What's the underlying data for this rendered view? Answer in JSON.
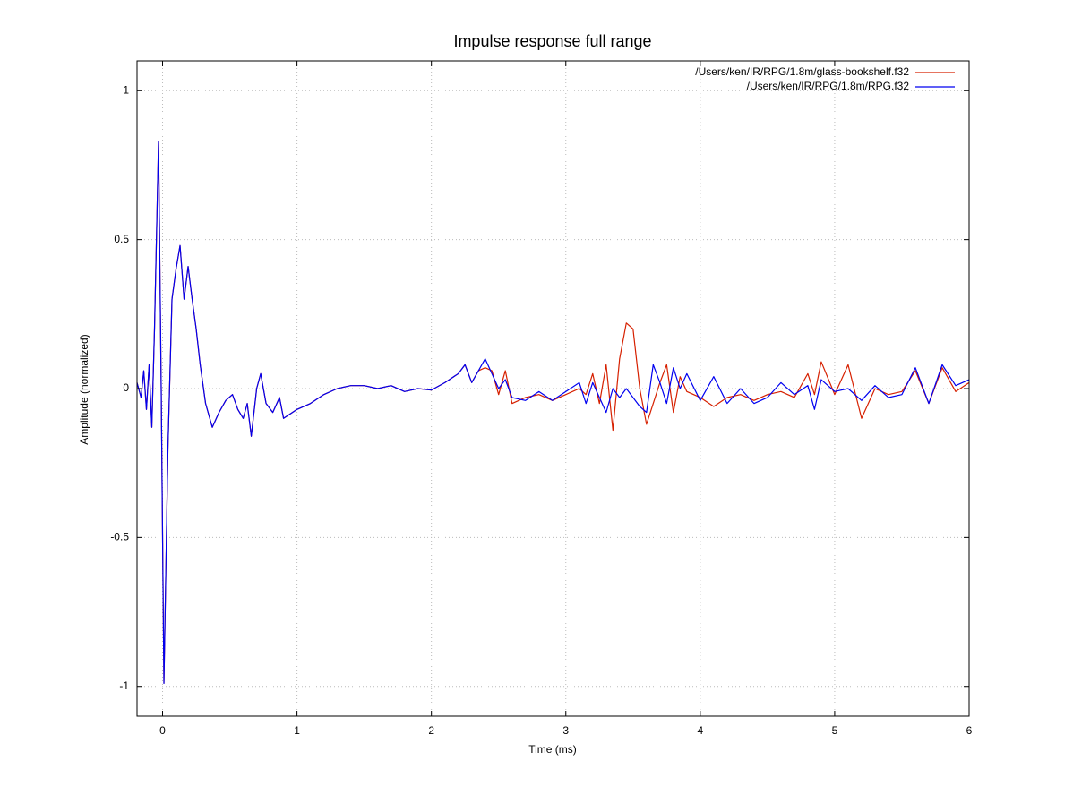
{
  "chart_data": {
    "type": "line",
    "title": "Impulse response full range",
    "x_label": "Time (ms)",
    "y_label": "Amplitude (normalized)",
    "x": [
      -0.19,
      -0.16,
      -0.14,
      -0.12,
      -0.1,
      -0.08,
      -0.06,
      -0.03,
      -0.01,
      0.01,
      0.04,
      0.07,
      0.1,
      0.13,
      0.16,
      0.19,
      0.22,
      0.25,
      0.28,
      0.32,
      0.37,
      0.42,
      0.47,
      0.52,
      0.56,
      0.6,
      0.63,
      0.66,
      0.7,
      0.73,
      0.77,
      0.82,
      0.87,
      0.9,
      1.0,
      1.1,
      1.2,
      1.3,
      1.4,
      1.5,
      1.6,
      1.7,
      1.8,
      1.9,
      2.0,
      2.1,
      2.2,
      2.25,
      2.3,
      2.35,
      2.4,
      2.45,
      2.5,
      2.55,
      2.6,
      2.7,
      2.8,
      2.9,
      3.0,
      3.1,
      3.15,
      3.2,
      3.25,
      3.3,
      3.35,
      3.4,
      3.45,
      3.5,
      3.55,
      3.6,
      3.65,
      3.7,
      3.75,
      3.8,
      3.85,
      3.9,
      4.0,
      4.1,
      4.2,
      4.3,
      4.4,
      4.5,
      4.6,
      4.7,
      4.8,
      4.85,
      4.9,
      5.0,
      5.1,
      5.2,
      5.3,
      5.4,
      5.5,
      5.6,
      5.7,
      5.8,
      5.9,
      6.0
    ],
    "series": [
      {
        "name": "/Users/ken/IR/RPG/1.8m/glass-bookshelf.f32",
        "color": "#d62000",
        "values": [
          0.02,
          -0.03,
          0.06,
          -0.07,
          0.08,
          -0.13,
          0.2,
          0.83,
          0.0,
          -0.99,
          -0.2,
          0.3,
          0.4,
          0.48,
          0.3,
          0.41,
          0.3,
          0.2,
          0.08,
          -0.05,
          -0.13,
          -0.08,
          -0.04,
          -0.02,
          -0.07,
          -0.1,
          -0.05,
          -0.16,
          0.0,
          0.05,
          -0.05,
          -0.08,
          -0.03,
          -0.1,
          -0.07,
          -0.05,
          -0.02,
          0.0,
          0.01,
          0.01,
          0.0,
          0.01,
          -0.01,
          0.0,
          -0.005,
          0.02,
          0.05,
          0.08,
          0.02,
          0.06,
          0.07,
          0.06,
          -0.02,
          0.06,
          -0.05,
          -0.03,
          -0.02,
          -0.04,
          -0.02,
          0.0,
          -0.02,
          0.05,
          -0.05,
          0.08,
          -0.14,
          0.1,
          0.22,
          0.2,
          0.0,
          -0.12,
          -0.05,
          0.02,
          0.08,
          -0.08,
          0.04,
          -0.01,
          -0.03,
          -0.06,
          -0.03,
          -0.02,
          -0.04,
          -0.02,
          -0.01,
          -0.03,
          0.05,
          -0.02,
          0.09,
          -0.02,
          0.08,
          -0.1,
          0.0,
          -0.02,
          -0.01,
          0.06,
          -0.05,
          0.07,
          -0.01,
          0.02
        ]
      },
      {
        "name": "/Users/ken/IR/RPG/1.8m/RPG.f32",
        "color": "#0000f0",
        "values": [
          0.02,
          -0.03,
          0.06,
          -0.07,
          0.08,
          -0.13,
          0.2,
          0.83,
          0.0,
          -0.99,
          -0.2,
          0.3,
          0.4,
          0.48,
          0.3,
          0.41,
          0.3,
          0.2,
          0.08,
          -0.05,
          -0.13,
          -0.08,
          -0.04,
          -0.02,
          -0.07,
          -0.1,
          -0.05,
          -0.16,
          0.0,
          0.05,
          -0.05,
          -0.08,
          -0.03,
          -0.1,
          -0.07,
          -0.05,
          -0.02,
          0.0,
          0.01,
          0.01,
          0.0,
          0.01,
          -0.01,
          0.0,
          -0.005,
          0.02,
          0.05,
          0.08,
          0.02,
          0.06,
          0.1,
          0.05,
          0.0,
          0.03,
          -0.03,
          -0.04,
          -0.01,
          -0.04,
          -0.01,
          0.02,
          -0.05,
          0.02,
          -0.03,
          -0.08,
          0.0,
          -0.03,
          0.0,
          -0.03,
          -0.06,
          -0.08,
          0.08,
          0.02,
          -0.05,
          0.07,
          0.0,
          0.05,
          -0.04,
          0.04,
          -0.05,
          0.0,
          -0.05,
          -0.03,
          0.02,
          -0.02,
          0.01,
          -0.07,
          0.03,
          -0.01,
          0.0,
          -0.04,
          0.01,
          -0.03,
          -0.02,
          0.07,
          -0.05,
          0.08,
          0.01,
          0.03
        ]
      }
    ],
    "xlim": [
      -0.19,
      6
    ],
    "ylim": [
      -1.1,
      1.1
    ],
    "xticks": [
      0,
      1,
      2,
      3,
      4,
      5,
      6
    ],
    "yticks": [
      -1,
      -0.5,
      0,
      0.5,
      1
    ],
    "grid": true,
    "legend": "top-right"
  }
}
